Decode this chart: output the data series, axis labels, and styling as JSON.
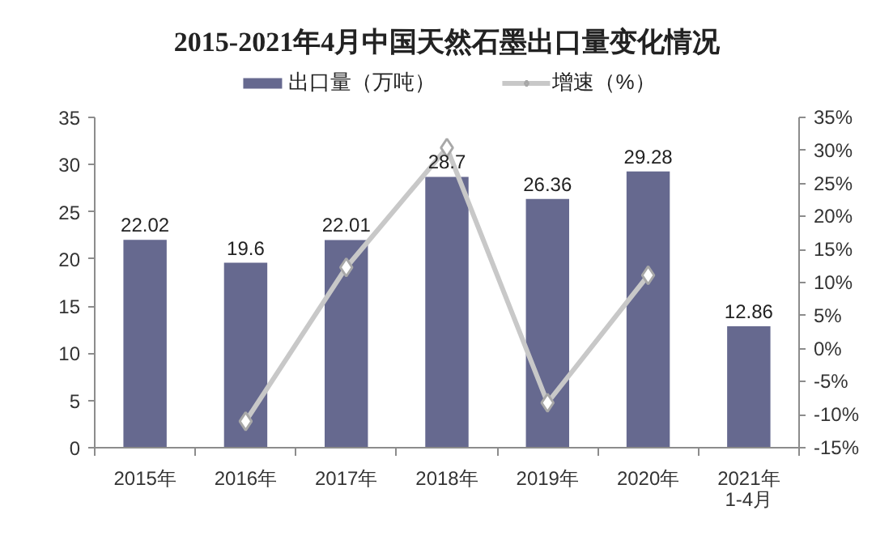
{
  "chart_data": {
    "type": "bar",
    "title": "2015-2021年4月中国天然石墨出口量变化情况",
    "categories": [
      "2015年",
      "2016年",
      "2017年",
      "2018年",
      "2019年",
      "2020年",
      "2021年\n1-4月"
    ],
    "series": [
      {
        "name": "出口量（万吨）",
        "type": "bar",
        "color": "#66698f",
        "values": [
          22.02,
          19.6,
          22.01,
          28.7,
          26.36,
          29.28,
          12.86
        ],
        "value_labels": [
          "22.02",
          "19.6",
          "22.01",
          "28.7",
          "26.36",
          "29.28",
          "12.86"
        ]
      },
      {
        "name": "增速（%）",
        "type": "line",
        "axis": "y2",
        "color": "#c8c8c8",
        "marker": "diamond",
        "values": [
          null,
          -11.0,
          12.3,
          30.4,
          -8.2,
          11.1,
          null
        ]
      }
    ],
    "ylim": [
      0,
      35
    ],
    "yticks": [
      0,
      5,
      10,
      15,
      20,
      25,
      30,
      35
    ],
    "y2lim": [
      -15,
      35
    ],
    "y2ticks": [
      {
        "value": -15,
        "label": "-15%"
      },
      {
        "value": -10,
        "label": "-10%"
      },
      {
        "value": -5,
        "label": "-5%"
      },
      {
        "value": 0,
        "label": "0%"
      },
      {
        "value": 5,
        "label": "5%"
      },
      {
        "value": 10,
        "label": "10%"
      },
      {
        "value": 15,
        "label": "15%"
      },
      {
        "value": 20,
        "label": "20%"
      },
      {
        "value": 25,
        "label": "25%"
      },
      {
        "value": 30,
        "label": "30%"
      },
      {
        "value": 35,
        "label": "35%"
      }
    ],
    "grid": false,
    "legend": "top"
  }
}
